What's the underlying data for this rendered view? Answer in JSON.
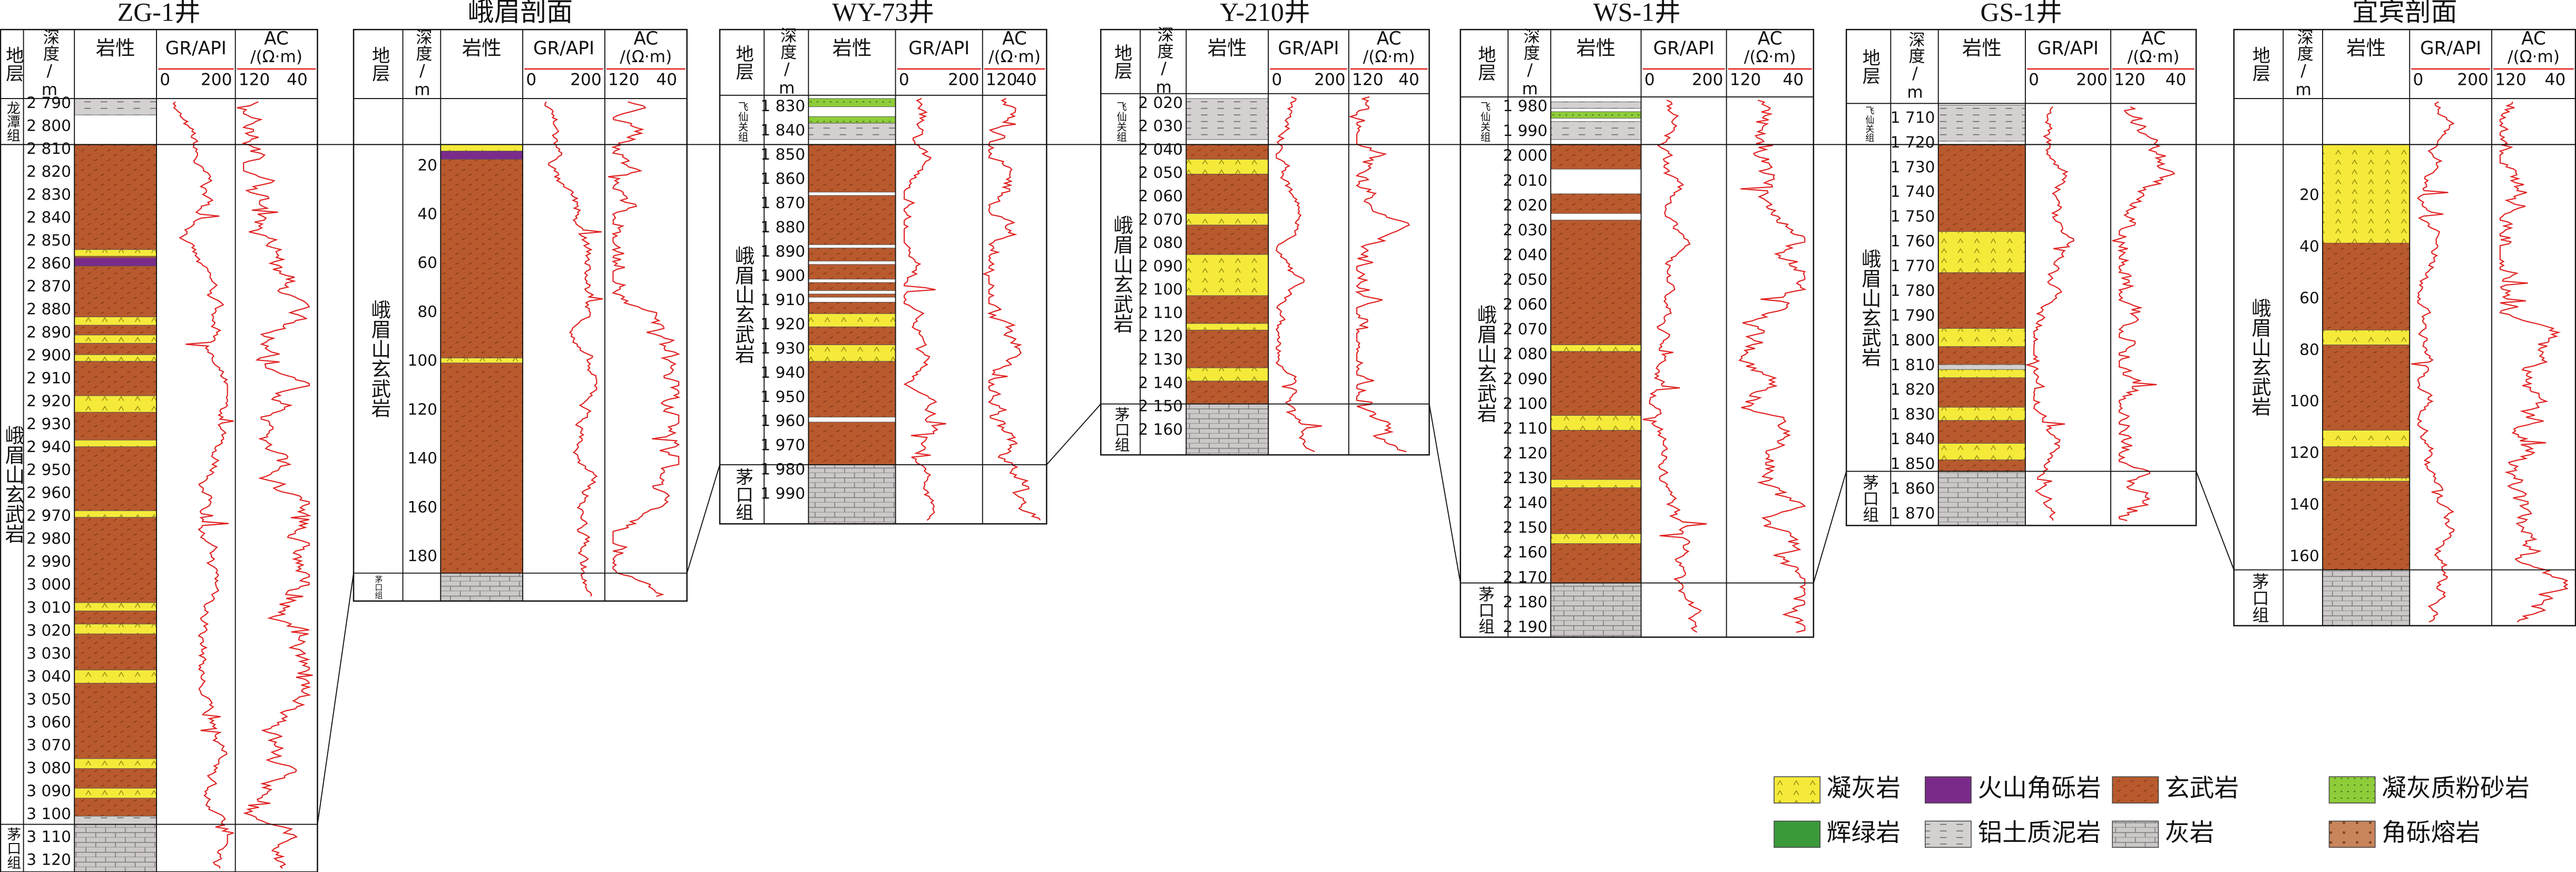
{
  "column_header": {
    "formation": "地层",
    "depth": "深度/m",
    "lithology": "岩性",
    "gr": "GR/API",
    "gr_min": "0",
    "gr_max": "200",
    "ac": "AC",
    "ac_unit": "/(Ω·m)",
    "ac_min": "120",
    "ac_max": "40"
  },
  "wells": [
    {
      "name": "ZG-1井",
      "formations": [
        "龙潭组",
        "峨眉山玄武岩",
        "茅口组"
      ],
      "depths": [
        "2 790",
        "2 800",
        "2 810",
        "2 820",
        "2 830",
        "2 840",
        "2 850",
        "2 860",
        "2 870",
        "2 880",
        "2 890",
        "2 900",
        "2 910",
        "2 920",
        "2 930",
        "2 940",
        "2 950",
        "2 960",
        "2 970",
        "2 980",
        "2 990",
        "3 000",
        "3 010",
        "3 020",
        "3 030",
        "3 040",
        "3 050",
        "3 060",
        "3 070",
        "3 080",
        "3 090",
        "3 100",
        "3 110",
        "3 120"
      ]
    },
    {
      "name": "峨眉剖面",
      "formations": [
        "峨眉山玄武岩",
        "茅口组"
      ],
      "depths": [
        "20",
        "40",
        "60",
        "80",
        "100",
        "120",
        "140",
        "160",
        "180"
      ]
    },
    {
      "name": "WY-73井",
      "formations": [
        "飞仙关组",
        "峨眉山玄武岩",
        "茅口组"
      ],
      "depths": [
        "1 830",
        "1 840",
        "1 850",
        "1 860",
        "1 870",
        "1 880",
        "1 890",
        "1 900",
        "1 910",
        "1 920",
        "1 930",
        "1 940",
        "1 950",
        "1 960",
        "1 970",
        "1 980",
        "1 990"
      ]
    },
    {
      "name": "Y-210井",
      "formations": [
        "飞仙关组",
        "峨眉山玄武岩",
        "茅口组"
      ],
      "depths": [
        "2 020",
        "2 030",
        "2 040",
        "2 050",
        "2 060",
        "2 070",
        "2 080",
        "2 090",
        "2 100",
        "2 110",
        "2 120",
        "2 130",
        "2 140",
        "2 150",
        "2 160"
      ]
    },
    {
      "name": "WS-1井",
      "formations": [
        "飞仙关组",
        "峨眉山玄武岩",
        "茅口组"
      ],
      "depths": [
        "1 980",
        "1 990",
        "2 000",
        "2 010",
        "2 020",
        "2 030",
        "2 040",
        "2 050",
        "2 060",
        "2 070",
        "2 080",
        "2 090",
        "2 100",
        "2 110",
        "2 120",
        "2 130",
        "2 140",
        "2 150",
        "2 160",
        "2 170",
        "2 180",
        "2 190"
      ]
    },
    {
      "name": "GS-1井",
      "formations": [
        "飞仙关组",
        "峨眉山玄武岩",
        "茅口组"
      ],
      "depths": [
        "1 710",
        "1 720",
        "1 730",
        "1 740",
        "1 750",
        "1 760",
        "1 770",
        "1 780",
        "1 790",
        "1 800",
        "1 810",
        "1 820",
        "1 830",
        "1 840",
        "1 850",
        "1 860",
        "1 870"
      ]
    },
    {
      "name": "宜宾剖面",
      "formations": [
        "峨眉山玄武岩",
        "茅口组"
      ],
      "depths": [
        "20",
        "40",
        "60",
        "80",
        "100",
        "120",
        "140",
        "160"
      ]
    }
  ],
  "legend": [
    {
      "label": "凝灰岩"
    },
    {
      "label": "火山角砾岩"
    },
    {
      "label": "玄武岩"
    },
    {
      "label": "凝灰质粉砂岩"
    },
    {
      "label": "辉绿岩"
    },
    {
      "label": "铝土质泥岩"
    },
    {
      "label": "灰岩"
    },
    {
      "label": "角砾熔岩"
    }
  ]
}
